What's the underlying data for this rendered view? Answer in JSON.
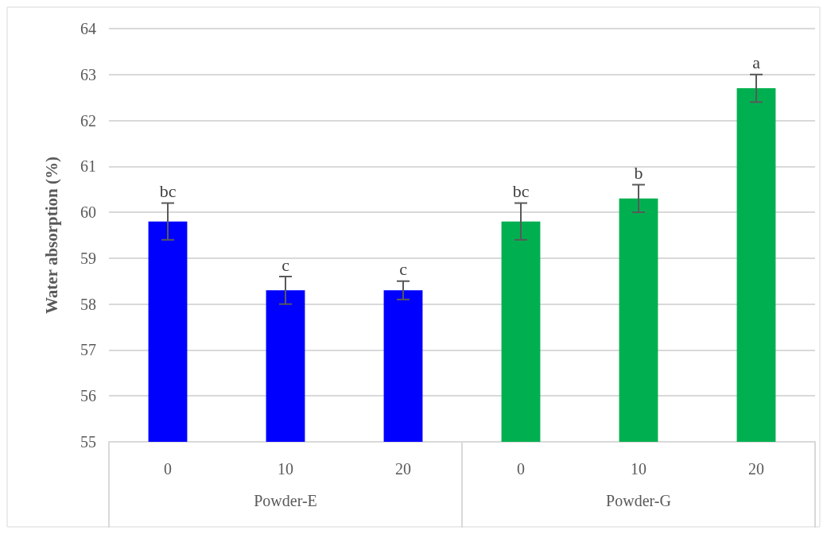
{
  "chart_data": {
    "type": "bar",
    "ylabel": "Water absorption (%)",
    "categories": [
      "0",
      "10",
      "20",
      "0",
      "10",
      "20"
    ],
    "values": [
      59.8,
      58.3,
      58.3,
      59.8,
      60.3,
      62.7
    ],
    "colors": [
      "#0000ff",
      "#0000ff",
      "#0000ff",
      "#00b050",
      "#00b050",
      "#00b050"
    ],
    "errors": [
      0.4,
      0.3,
      0.2,
      0.4,
      0.3,
      0.3
    ],
    "value_labels": [
      "bc",
      "c",
      "c",
      "bc",
      "b",
      "a"
    ],
    "annotations": [
      "Powder-E",
      "Powder-G"
    ],
    "ylim": [
      55,
      64
    ],
    "yticks": [
      55,
      56,
      57,
      58,
      59,
      60,
      61,
      62,
      63,
      64
    ],
    "grid": "y"
  }
}
